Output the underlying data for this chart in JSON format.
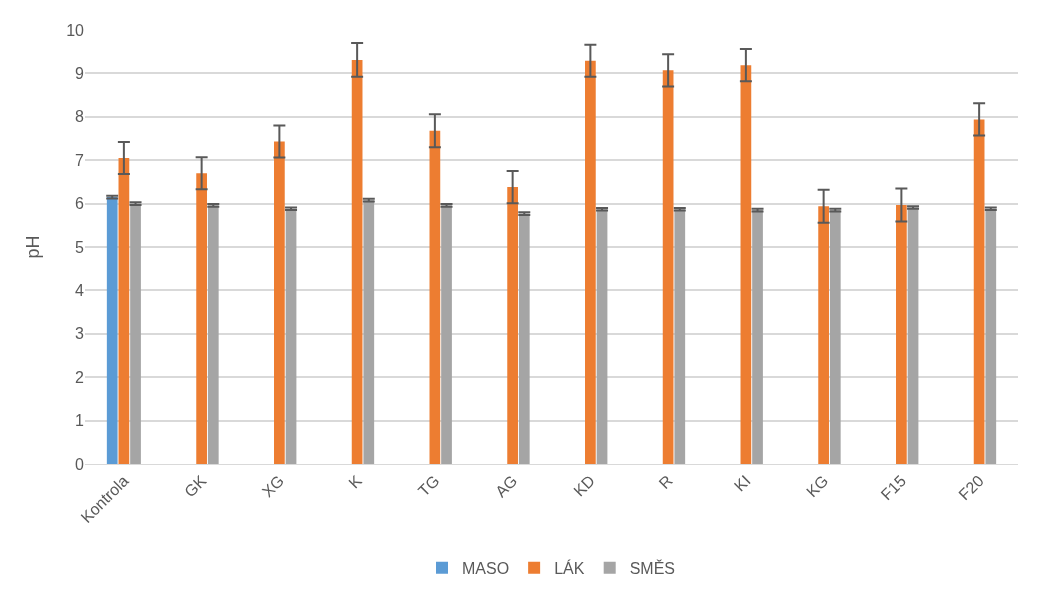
{
  "chart_data": {
    "type": "bar",
    "ylabel": "pH",
    "categories": [
      "Kontrola",
      "GK",
      "XG",
      "K",
      "TG",
      "AG",
      "KD",
      "R",
      "KI",
      "KG",
      "F15",
      "F20"
    ],
    "series": [
      {
        "name": "MASO",
        "color": "#5b9bd5",
        "values": [
          6.15,
          null,
          null,
          null,
          null,
          null,
          null,
          null,
          null,
          null,
          null,
          null
        ],
        "errors": [
          0.03,
          null,
          null,
          null,
          null,
          null,
          null,
          null,
          null,
          null,
          null,
          null
        ]
      },
      {
        "name": "LÁK",
        "color": "#ed7d31",
        "values": [
          7.05,
          6.7,
          7.43,
          9.31,
          7.68,
          6.38,
          9.29,
          9.07,
          9.19,
          5.94,
          5.97,
          7.94
        ],
        "errors": [
          0.37,
          0.37,
          0.37,
          0.39,
          0.38,
          0.37,
          0.37,
          0.37,
          0.37,
          0.38,
          0.38,
          0.37
        ]
      },
      {
        "name": "SMĚS",
        "color": "#a5a5a5",
        "values": [
          6.0,
          5.96,
          5.88,
          6.08,
          5.96,
          5.77,
          5.87,
          5.87,
          5.85,
          5.85,
          5.91,
          5.88
        ],
        "errors": [
          0.03,
          0.03,
          0.03,
          0.03,
          0.03,
          0.03,
          0.03,
          0.03,
          0.03,
          0.03,
          0.03,
          0.03
        ]
      }
    ],
    "ylim": [
      0,
      10
    ],
    "yticks": [
      0,
      1,
      2,
      3,
      4,
      5,
      6,
      7,
      8,
      9,
      10
    ],
    "grid": "y",
    "legend": "bottom"
  }
}
